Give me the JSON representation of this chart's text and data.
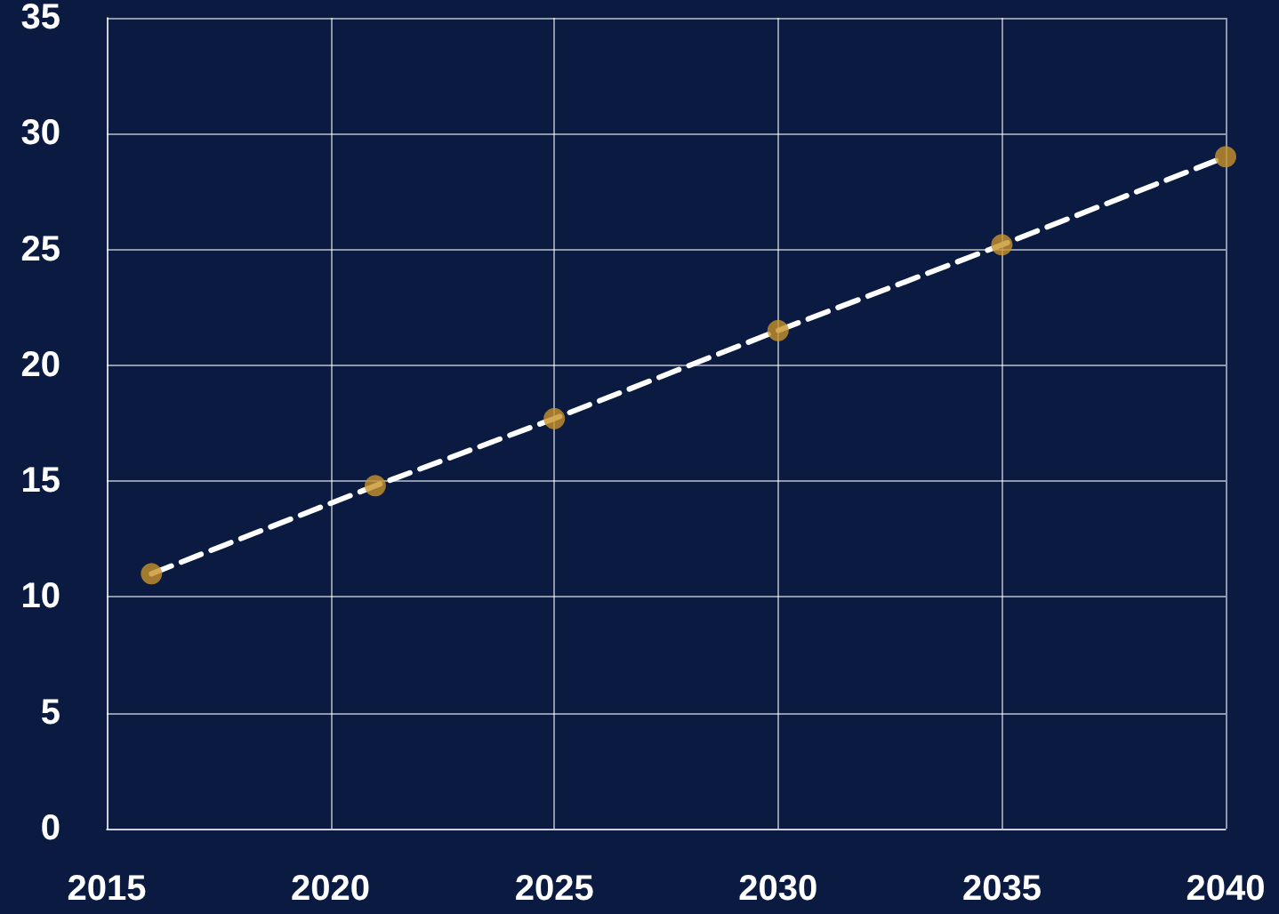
{
  "chart_data": {
    "type": "line",
    "x": [
      2016,
      2021,
      2025,
      2030,
      2035,
      2040
    ],
    "series": [
      {
        "type": "line",
        "color": "#ffffff",
        "line_style": "dashed",
        "marker": "none",
        "values": [
          11,
          14.8,
          17.7,
          21.5,
          25.2,
          29
        ]
      },
      {
        "type": "scatter",
        "color": "#c8922a",
        "marker": "circle",
        "values": [
          11,
          14.8,
          17.7,
          21.5,
          25.2,
          29
        ]
      }
    ],
    "xlim": [
      2015,
      2040
    ],
    "xticks": [
      2015,
      2020,
      2025,
      2030,
      2035,
      2040
    ],
    "ylim": [
      0,
      35
    ],
    "yticks": [
      0,
      5,
      10,
      15,
      20,
      25,
      30,
      35
    ],
    "grid": true
  }
}
